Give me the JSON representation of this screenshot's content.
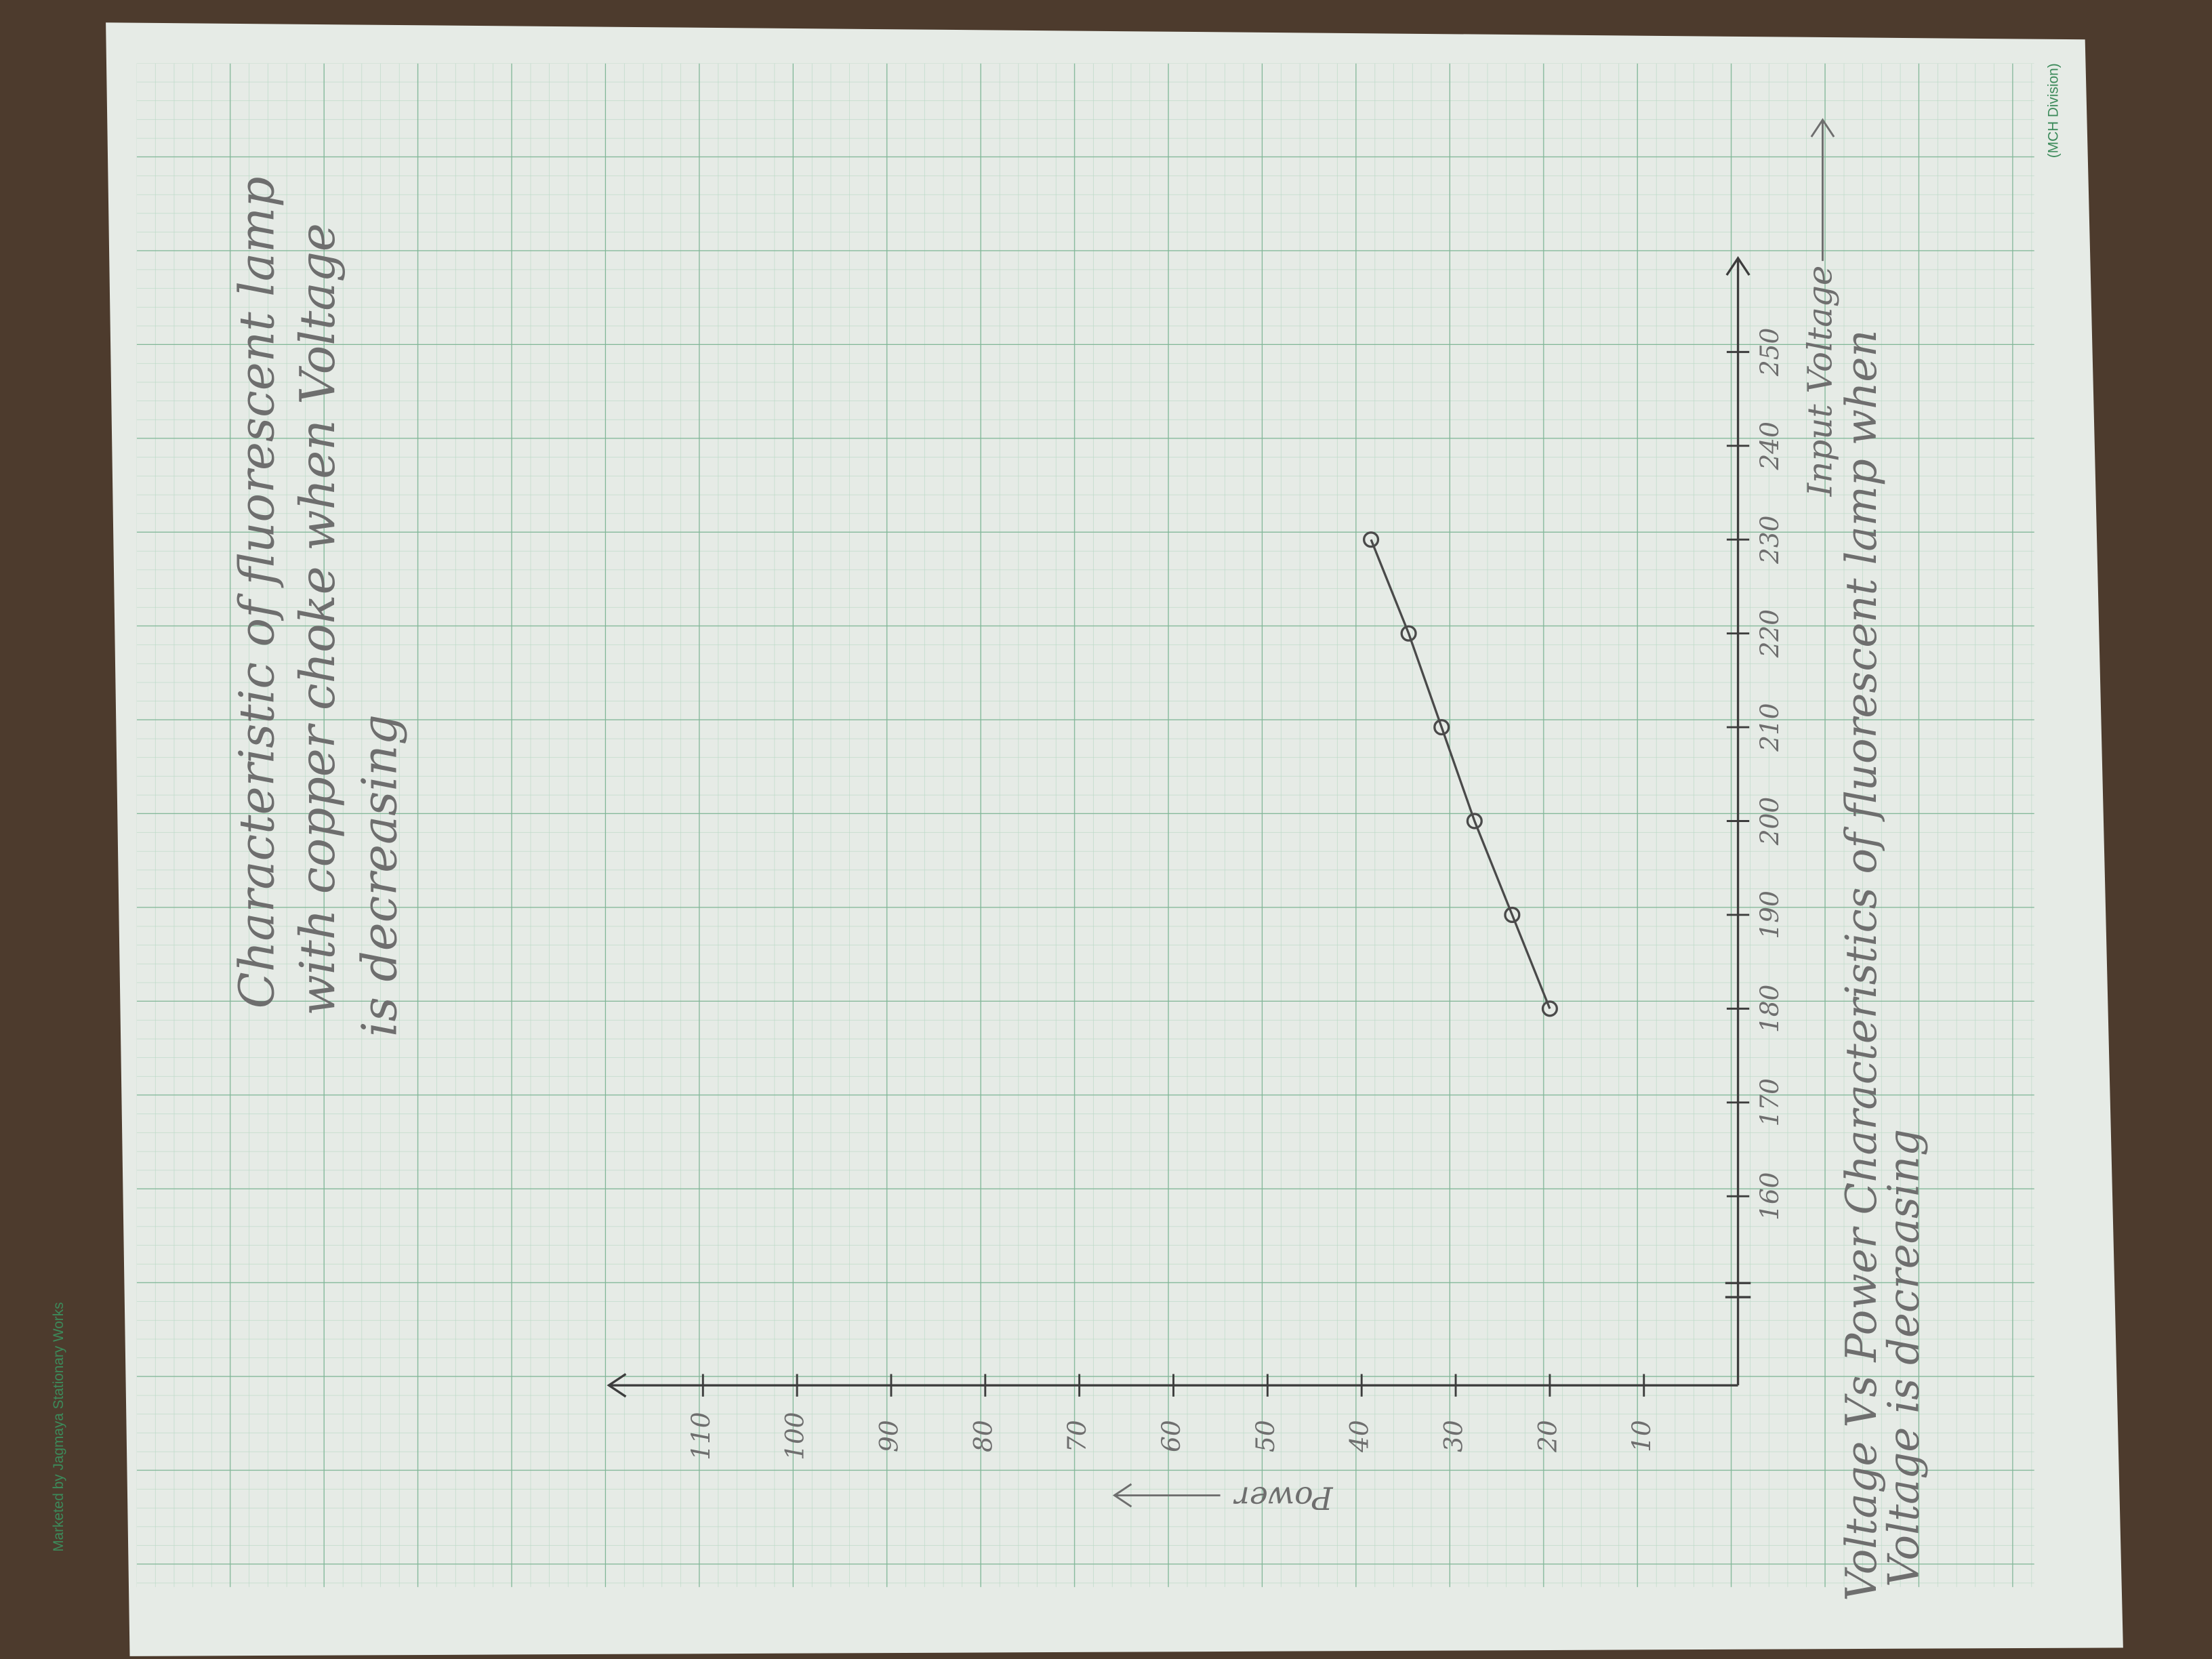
{
  "chart_data": {
    "type": "line",
    "title": [
      "Characteristic of fluorescent lamp",
      "with copper choke when Voltage",
      "is decreasing"
    ],
    "caption": [
      "Voltage Vs Power Characteristics of fluorescent lamp when",
      "Voltage is decreasing"
    ],
    "x_label": "Input Voltage",
    "y_label": "Power",
    "x": [
      180,
      190,
      200,
      210,
      220,
      230
    ],
    "values": [
      20,
      24,
      28,
      31.5,
      35,
      39
    ],
    "color": "#4a4a4a",
    "xlim": [
      150,
      260
    ],
    "xticks": [
      160,
      170,
      180,
      190,
      200,
      210,
      220,
      230,
      240,
      250
    ],
    "ylim": [
      0,
      120
    ],
    "yticks": [
      10,
      20,
      30,
      40,
      50,
      60,
      70,
      80,
      90,
      100,
      110
    ],
    "x_axis_break": true
  },
  "paper": {
    "brand": "Marketed by Jagmaya Stationary Works",
    "division": "(MCH Division)"
  }
}
